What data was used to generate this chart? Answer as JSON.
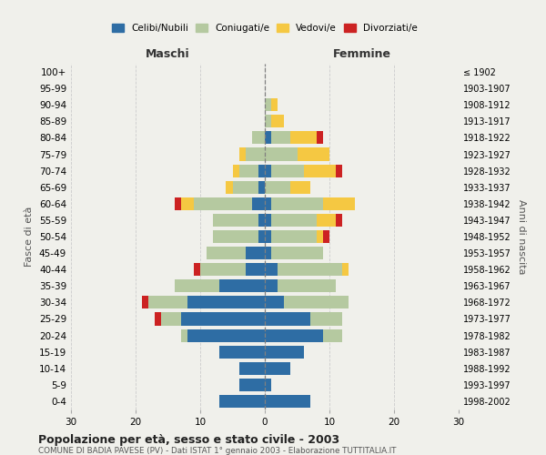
{
  "age_groups": [
    "0-4",
    "5-9",
    "10-14",
    "15-19",
    "20-24",
    "25-29",
    "30-34",
    "35-39",
    "40-44",
    "45-49",
    "50-54",
    "55-59",
    "60-64",
    "65-69",
    "70-74",
    "75-79",
    "80-84",
    "85-89",
    "90-94",
    "95-99",
    "100+"
  ],
  "birth_years": [
    "1998-2002",
    "1993-1997",
    "1988-1992",
    "1983-1987",
    "1978-1982",
    "1973-1977",
    "1968-1972",
    "1963-1967",
    "1958-1962",
    "1953-1957",
    "1948-1952",
    "1943-1947",
    "1938-1942",
    "1933-1937",
    "1928-1932",
    "1923-1927",
    "1918-1922",
    "1913-1917",
    "1908-1912",
    "1903-1907",
    "≤ 1902"
  ],
  "maschi": {
    "celibi": [
      7,
      4,
      4,
      7,
      12,
      13,
      12,
      7,
      3,
      3,
      1,
      1,
      2,
      1,
      1,
      0,
      0,
      0,
      0,
      0,
      0
    ],
    "coniugati": [
      0,
      0,
      0,
      0,
      1,
      3,
      6,
      7,
      7,
      6,
      7,
      7,
      9,
      4,
      3,
      3,
      2,
      0,
      0,
      0,
      0
    ],
    "vedovi": [
      0,
      0,
      0,
      0,
      0,
      0,
      0,
      0,
      0,
      0,
      0,
      0,
      2,
      1,
      1,
      1,
      0,
      0,
      0,
      0,
      0
    ],
    "divorziati": [
      0,
      0,
      0,
      0,
      0,
      1,
      1,
      0,
      1,
      0,
      0,
      0,
      1,
      0,
      0,
      0,
      0,
      0,
      0,
      0,
      0
    ]
  },
  "femmine": {
    "nubili": [
      7,
      1,
      4,
      6,
      9,
      7,
      3,
      2,
      2,
      1,
      1,
      1,
      1,
      0,
      1,
      0,
      1,
      0,
      0,
      0,
      0
    ],
    "coniugate": [
      0,
      0,
      0,
      0,
      3,
      5,
      10,
      9,
      10,
      8,
      7,
      7,
      8,
      4,
      5,
      5,
      3,
      1,
      1,
      0,
      0
    ],
    "vedove": [
      0,
      0,
      0,
      0,
      0,
      0,
      0,
      0,
      1,
      0,
      1,
      3,
      5,
      3,
      5,
      5,
      4,
      2,
      1,
      0,
      0
    ],
    "divorziate": [
      0,
      0,
      0,
      0,
      0,
      0,
      0,
      0,
      0,
      0,
      1,
      1,
      0,
      0,
      1,
      0,
      1,
      0,
      0,
      0,
      0
    ]
  },
  "colors": {
    "celibi": "#2e6da4",
    "coniugati": "#b5c9a0",
    "vedovi": "#f5c842",
    "divorziati": "#cc2222"
  },
  "xlim": 30,
  "title": "Popolazione per età, sesso e stato civile - 2003",
  "subtitle": "COMUNE DI BADIA PAVESE (PV) - Dati ISTAT 1° gennaio 2003 - Elaborazione TUTTITALIA.IT",
  "ylabel_left": "Fasce di età",
  "ylabel_right": "Anni di nascita",
  "xlabel_maschi": "Maschi",
  "xlabel_femmine": "Femmine",
  "background_color": "#f0f0eb",
  "grid_color": "#cccccc"
}
